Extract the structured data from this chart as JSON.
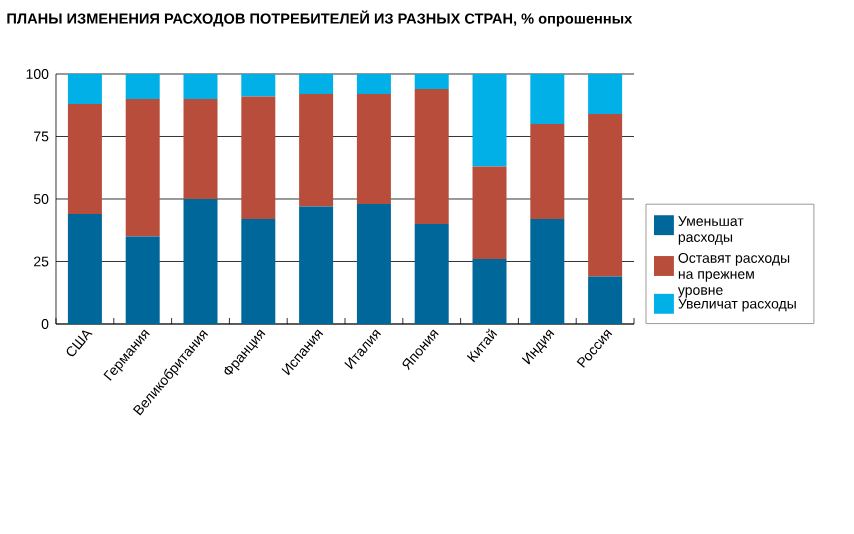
{
  "chart_data": {
    "type": "bar",
    "stacked": true,
    "title": "ПЛАНЫ ИЗМЕНЕНИЯ РАСХОДОВ ПОТРЕБИТЕЛЕЙ ИЗ РАЗНЫХ СТРАН, % опрошенных",
    "categories": [
      "США",
      "Германия",
      "Великобритания",
      "Франция",
      "Испания",
      "Италия",
      "Япония",
      "Китай",
      "Индия",
      "Россия"
    ],
    "series": [
      {
        "name": "Уменьшат расходы",
        "color": "#00679a",
        "values": [
          44,
          35,
          50,
          42,
          47,
          48,
          40,
          26,
          42,
          19
        ]
      },
      {
        "name": "Оставят расходы на прежнем уровне",
        "color": "#b84d3b",
        "values": [
          44,
          55,
          40,
          49,
          45,
          44,
          54,
          37,
          38,
          65
        ]
      },
      {
        "name": "Увеличат расходы",
        "color": "#00b0e6",
        "values": [
          12,
          10,
          10,
          9,
          8,
          8,
          6,
          37,
          20,
          16
        ]
      }
    ],
    "ylim": [
      0,
      100
    ],
    "yticks": [
      0,
      25,
      50,
      75,
      100
    ],
    "grid": "y",
    "legend": "right"
  }
}
